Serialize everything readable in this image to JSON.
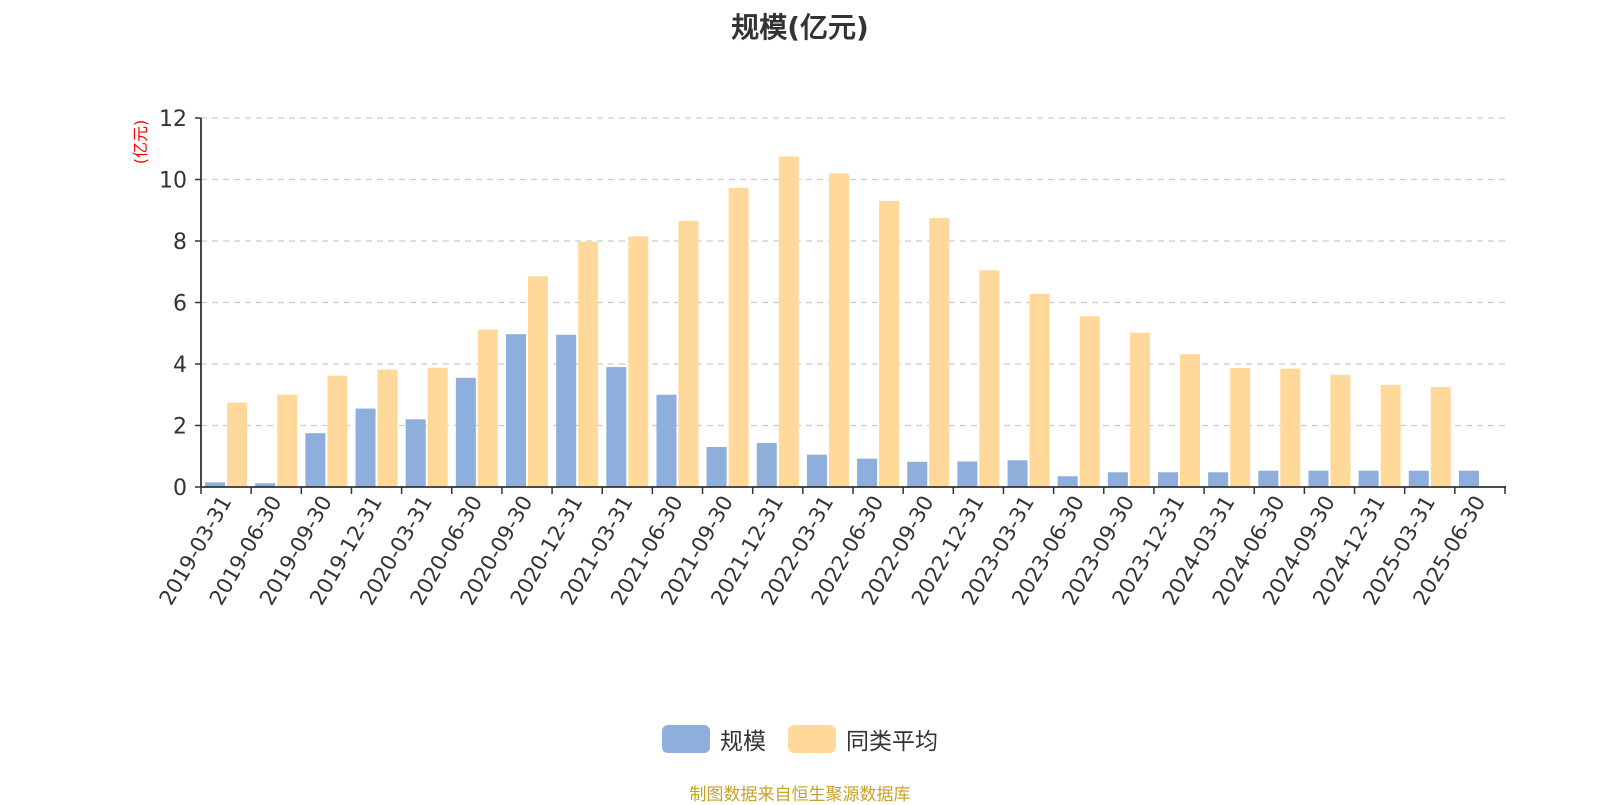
{
  "chart_data": {
    "type": "bar",
    "title": "规模(亿元)",
    "ylabel": "(亿元)",
    "xlabel": "",
    "ylim": [
      0,
      12
    ],
    "yticks": [
      0,
      2,
      4,
      6,
      8,
      10,
      12
    ],
    "grid": true,
    "legend_position": "bottom-center",
    "categories": [
      "2019-03-31",
      "2019-06-30",
      "2019-09-30",
      "2019-12-31",
      "2020-03-31",
      "2020-06-30",
      "2020-09-30",
      "2020-12-31",
      "2021-03-31",
      "2021-06-30",
      "2021-09-30",
      "2021-12-31",
      "2022-03-31",
      "2022-06-30",
      "2022-09-30",
      "2022-12-31",
      "2023-03-31",
      "2023-06-30",
      "2023-09-30",
      "2023-12-31",
      "2024-03-31",
      "2024-06-30",
      "2024-09-30",
      "2024-12-31",
      "2025-03-31",
      "2025-06-30"
    ],
    "series": [
      {
        "name": "规模",
        "color": "#8eaedb",
        "values": [
          0.15,
          0.12,
          1.75,
          2.55,
          2.2,
          3.55,
          4.97,
          4.95,
          3.9,
          3.0,
          1.3,
          1.43,
          1.05,
          0.92,
          0.82,
          0.83,
          0.87,
          0.35,
          0.48,
          0.48,
          0.48,
          0.53,
          0.53,
          0.53,
          0.53,
          0.53
        ]
      },
      {
        "name": "同类平均",
        "color": "#ffd89a",
        "values": [
          2.75,
          3.0,
          3.62,
          3.82,
          3.88,
          5.12,
          6.85,
          7.97,
          8.15,
          8.65,
          9.73,
          10.75,
          10.2,
          9.3,
          8.75,
          7.05,
          6.28,
          5.55,
          5.02,
          4.32,
          3.87,
          3.85,
          3.65,
          3.32,
          3.25,
          null
        ]
      }
    ]
  },
  "source_text": "制图数据来自恒生聚源数据库",
  "colors": {
    "axis_label": "#ff0000",
    "axis": "#333333",
    "grid": "#cccccc",
    "source": "#c9a227"
  }
}
